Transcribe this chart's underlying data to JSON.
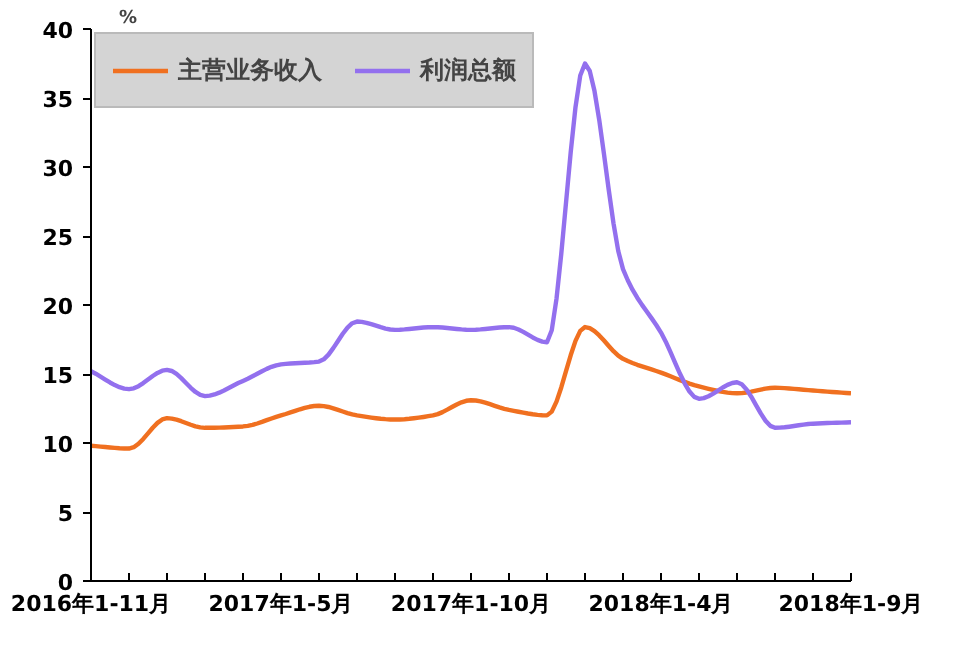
{
  "chart_data": {
    "type": "line",
    "ylabel": "%",
    "categories": [
      "2016年1-11月",
      null,
      null,
      null,
      null,
      "2017年1-5月",
      null,
      null,
      null,
      null,
      "2017年1-10月",
      null,
      null,
      null,
      null,
      "2018年1-4月",
      null,
      null,
      null,
      null,
      "2018年1-9月"
    ],
    "series": [
      {
        "name": "主营业务收入",
        "color": "#f07020",
        "values": [
          9.8,
          9.6,
          11.8,
          11.1,
          11.2,
          12.0,
          12.7,
          12.0,
          11.7,
          12.0,
          13.1,
          12.4,
          12.0,
          18.4,
          16.1,
          15.1,
          14.1,
          13.6,
          14.0,
          13.8,
          13.6
        ]
      },
      {
        "name": "利润总额",
        "color": "#9370ee",
        "values": [
          15.2,
          13.9,
          15.3,
          13.4,
          14.5,
          15.7,
          15.9,
          18.8,
          18.2,
          18.4,
          18.2,
          18.4,
          17.3,
          37.5,
          22.6,
          18.0,
          13.2,
          14.4,
          11.1,
          11.4,
          11.5
        ]
      }
    ],
    "ylim": [
      0,
      40
    ],
    "yticks": [
      0,
      5,
      10,
      15,
      20,
      25,
      30,
      35,
      40
    ],
    "grid": false,
    "legend": "top left",
    "marker": "none",
    "line_style": "solid"
  }
}
